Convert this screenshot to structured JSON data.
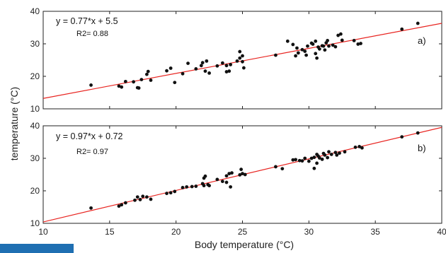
{
  "chart_data": [
    {
      "type": "scatter",
      "panel_label": "a)",
      "equation": "y = 0.77*x + 5.5",
      "r2": "R2= 0.88",
      "xlim": [
        10,
        40
      ],
      "ylim": [
        10,
        40
      ],
      "x_ticks": [
        10,
        15,
        20,
        25,
        30,
        35,
        40
      ],
      "y_ticks": [
        10,
        20,
        30,
        40
      ],
      "grid": false,
      "fit": {
        "slope": 0.77,
        "intercept": 5.5,
        "color": "#e8231f"
      },
      "points": [
        [
          13.6,
          17.3
        ],
        [
          15.7,
          17.0
        ],
        [
          15.9,
          16.7
        ],
        [
          16.2,
          18.4
        ],
        [
          16.8,
          18.3
        ],
        [
          17.1,
          16.5
        ],
        [
          17.2,
          16.4
        ],
        [
          17.4,
          19.0
        ],
        [
          17.8,
          20.6
        ],
        [
          17.9,
          21.5
        ],
        [
          18.1,
          18.8
        ],
        [
          19.3,
          21.7
        ],
        [
          19.6,
          22.5
        ],
        [
          19.9,
          18.1
        ],
        [
          20.5,
          20.8
        ],
        [
          20.9,
          24.0
        ],
        [
          21.5,
          22.3
        ],
        [
          21.9,
          23.3
        ],
        [
          22.0,
          24.2
        ],
        [
          22.2,
          21.6
        ],
        [
          22.3,
          24.7
        ],
        [
          22.5,
          21.0
        ],
        [
          23.1,
          23.2
        ],
        [
          23.5,
          24.1
        ],
        [
          23.8,
          21.4
        ],
        [
          23.8,
          23.3
        ],
        [
          24.0,
          21.6
        ],
        [
          24.1,
          23.6
        ],
        [
          24.6,
          24.7
        ],
        [
          24.8,
          25.6
        ],
        [
          24.8,
          27.6
        ],
        [
          25.0,
          26.3
        ],
        [
          25.0,
          24.5
        ],
        [
          25.1,
          22.6
        ],
        [
          27.5,
          26.5
        ],
        [
          28.4,
          30.8
        ],
        [
          28.8,
          29.8
        ],
        [
          29.0,
          26.3
        ],
        [
          29.1,
          28.7
        ],
        [
          29.2,
          27.2
        ],
        [
          29.5,
          28.2
        ],
        [
          29.7,
          27.7
        ],
        [
          29.8,
          26.5
        ],
        [
          29.9,
          29.3
        ],
        [
          30.2,
          30.2
        ],
        [
          30.3,
          29.9
        ],
        [
          30.5,
          30.8
        ],
        [
          30.5,
          27.0
        ],
        [
          30.6,
          25.6
        ],
        [
          30.7,
          29.0
        ],
        [
          30.8,
          28.4
        ],
        [
          31.0,
          29.4
        ],
        [
          31.1,
          29.3
        ],
        [
          31.2,
          28.1
        ],
        [
          31.3,
          30.3
        ],
        [
          31.4,
          31.0
        ],
        [
          31.5,
          29.3
        ],
        [
          31.8,
          29.6
        ],
        [
          32.0,
          29.1
        ],
        [
          32.2,
          32.6
        ],
        [
          32.4,
          33.0
        ],
        [
          32.5,
          31.1
        ],
        [
          33.4,
          31.0
        ],
        [
          33.7,
          29.9
        ],
        [
          33.9,
          30.1
        ],
        [
          37.0,
          34.5
        ],
        [
          38.2,
          36.3
        ]
      ]
    },
    {
      "type": "scatter",
      "panel_label": "b)",
      "equation": "y = 0.97*x + 0.72",
      "r2": "R2= 0.97",
      "xlim": [
        10,
        40
      ],
      "ylim": [
        10,
        40
      ],
      "x_ticks": [
        10,
        15,
        20,
        25,
        30,
        35,
        40
      ],
      "y_ticks": [
        10,
        20,
        30,
        40
      ],
      "grid": false,
      "fit": {
        "slope": 0.97,
        "intercept": 0.72,
        "color": "#e8231f"
      },
      "points": [
        [
          13.6,
          14.7
        ],
        [
          15.7,
          15.3
        ],
        [
          15.9,
          15.7
        ],
        [
          16.2,
          16.3
        ],
        [
          16.9,
          17.1
        ],
        [
          17.1,
          18.1
        ],
        [
          17.3,
          17.3
        ],
        [
          17.5,
          18.3
        ],
        [
          17.8,
          18.1
        ],
        [
          18.1,
          17.4
        ],
        [
          19.3,
          19.2
        ],
        [
          19.6,
          19.4
        ],
        [
          19.9,
          19.8
        ],
        [
          20.5,
          21.0
        ],
        [
          20.8,
          21.2
        ],
        [
          21.2,
          21.3
        ],
        [
          21.5,
          21.4
        ],
        [
          22.0,
          22.2
        ],
        [
          22.1,
          21.6
        ],
        [
          22.1,
          23.9
        ],
        [
          22.2,
          24.5
        ],
        [
          22.4,
          21.9
        ],
        [
          22.5,
          21.6
        ],
        [
          23.1,
          23.5
        ],
        [
          23.5,
          22.9
        ],
        [
          23.8,
          22.6
        ],
        [
          23.8,
          24.6
        ],
        [
          24.0,
          25.3
        ],
        [
          24.1,
          21.2
        ],
        [
          24.2,
          25.5
        ],
        [
          24.8,
          24.9
        ],
        [
          24.9,
          26.6
        ],
        [
          25.0,
          25.3
        ],
        [
          25.2,
          25.0
        ],
        [
          27.5,
          27.4
        ],
        [
          28.0,
          26.8
        ],
        [
          28.8,
          29.5
        ],
        [
          29.0,
          29.6
        ],
        [
          29.3,
          29.3
        ],
        [
          29.5,
          29.2
        ],
        [
          29.7,
          30.0
        ],
        [
          30.0,
          29.1
        ],
        [
          30.2,
          30.0
        ],
        [
          30.4,
          26.9
        ],
        [
          30.4,
          30.3
        ],
        [
          30.6,
          31.2
        ],
        [
          30.6,
          28.5
        ],
        [
          30.7,
          30.7
        ],
        [
          30.8,
          30.1
        ],
        [
          31.0,
          29.7
        ],
        [
          31.1,
          31.5
        ],
        [
          31.2,
          31.0
        ],
        [
          31.4,
          30.2
        ],
        [
          31.5,
          32.0
        ],
        [
          31.7,
          31.2
        ],
        [
          32.0,
          31.8
        ],
        [
          32.1,
          31.0
        ],
        [
          32.3,
          31.6
        ],
        [
          32.7,
          32.0
        ],
        [
          33.5,
          33.4
        ],
        [
          33.8,
          33.6
        ],
        [
          34.0,
          33.2
        ],
        [
          37.0,
          36.6
        ],
        [
          38.2,
          37.8
        ]
      ]
    }
  ],
  "shared_axes": {
    "xlabel": "Body temperature (°C)",
    "ylabel": "temperature (°C)"
  }
}
